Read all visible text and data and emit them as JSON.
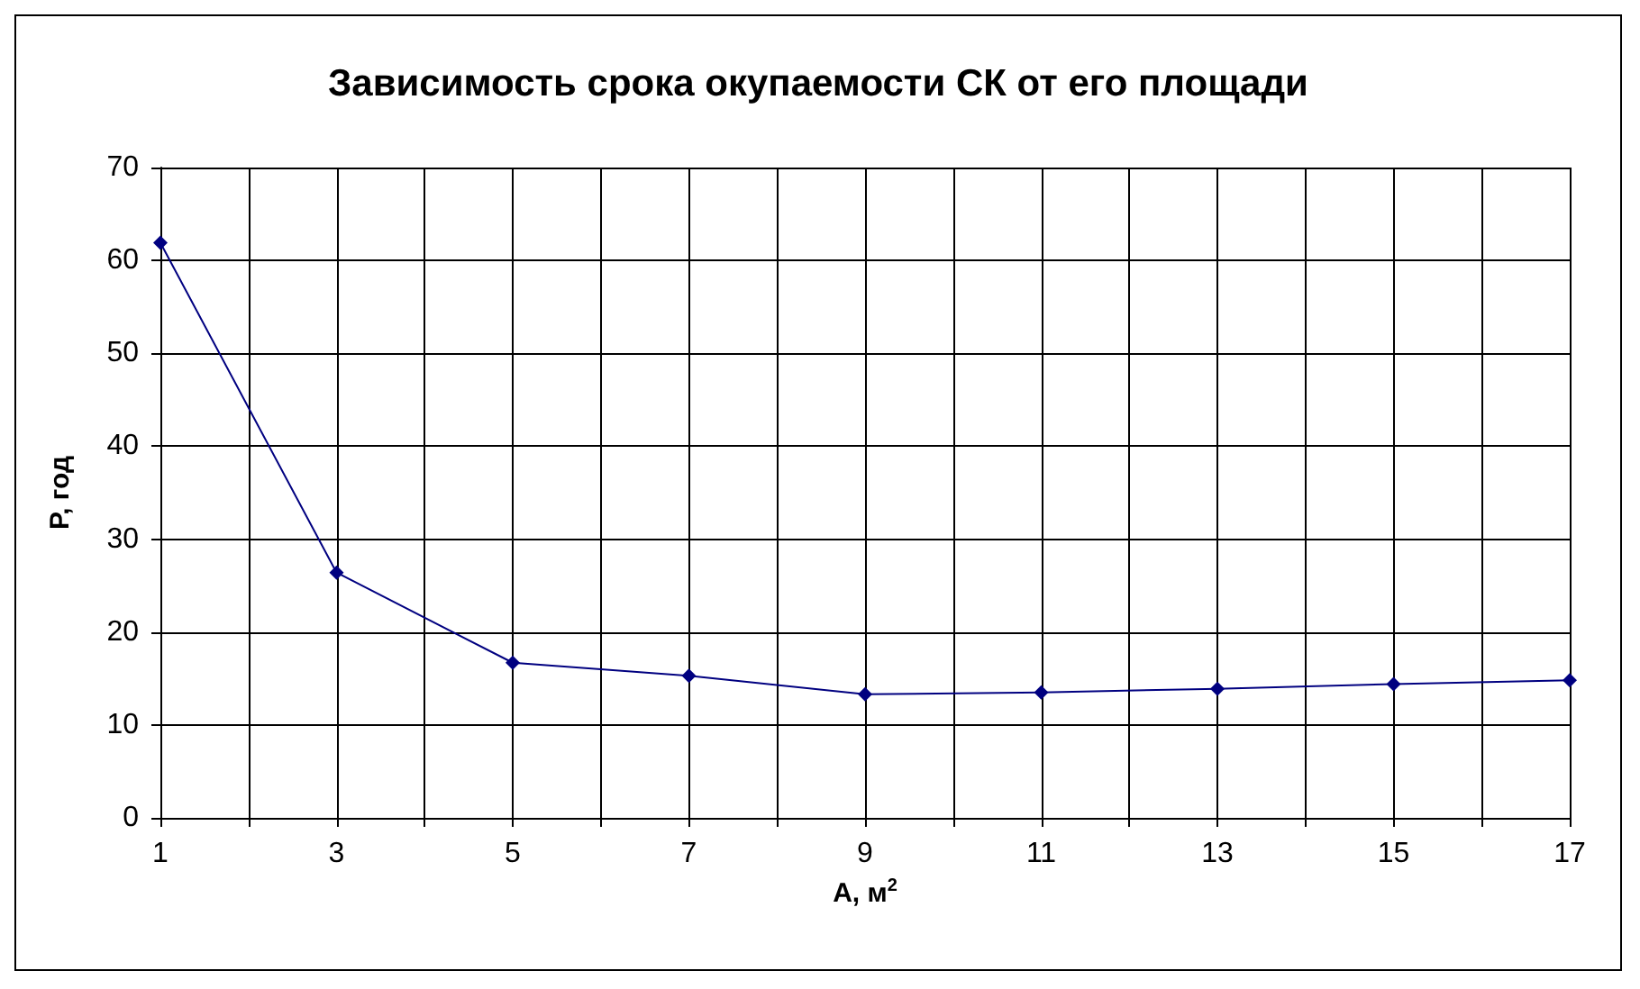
{
  "chart_data": {
    "type": "line",
    "title": "Зависимость срока окупаемости СК от его площади",
    "xlabel": "A, м$^{2}$",
    "ylabel": "P, год",
    "x": [
      1,
      3,
      5,
      7,
      9,
      11,
      13,
      15,
      17
    ],
    "series": [
      {
        "color": "#000080",
        "values": [
          61.9,
          26.4,
          16.7,
          15.3,
          13.3,
          13.5,
          13.9,
          14.4,
          14.8
        ]
      }
    ],
    "xlim": [
      1,
      17
    ],
    "xticks": [
      1,
      {
        "value": 2,
        "label": null
      },
      3,
      {
        "value": 4,
        "label": null
      },
      5,
      {
        "value": 6,
        "label": null
      },
      7,
      {
        "value": 8,
        "label": null
      },
      9,
      {
        "value": 10,
        "label": null
      },
      11,
      {
        "value": 12,
        "label": null
      },
      13,
      {
        "value": 14,
        "label": null
      },
      15,
      {
        "value": 16,
        "label": null
      },
      17
    ],
    "ylim": [
      0,
      70
    ],
    "yticks": [
      0,
      10,
      20,
      30,
      40,
      50,
      60,
      70
    ],
    "grid": true,
    "marker": "diamond",
    "line_style": "solid"
  }
}
